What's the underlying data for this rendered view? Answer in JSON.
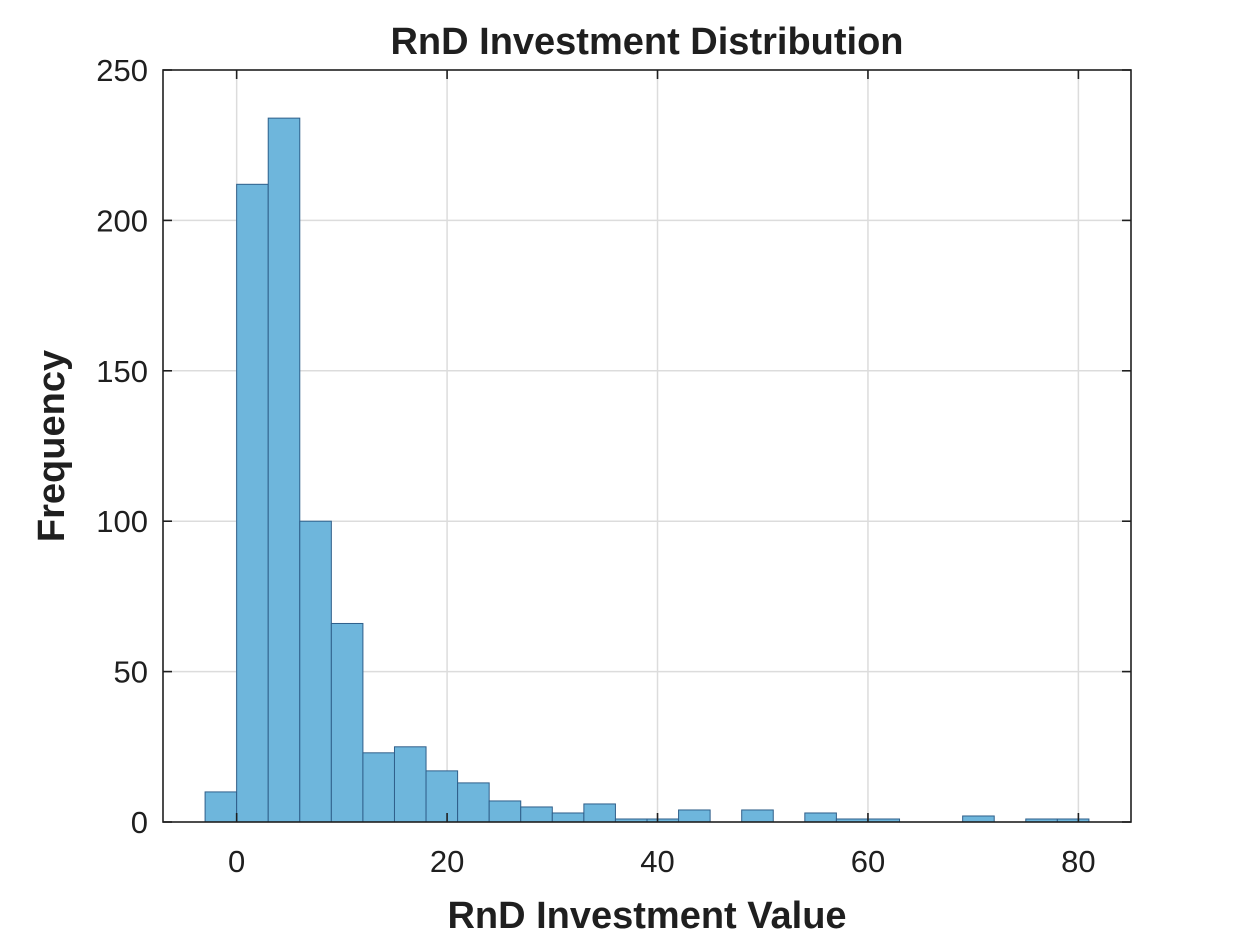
{
  "chart_data": {
    "type": "bar",
    "title": "RnD Investment Distribution",
    "xlabel": "RnD Investment Value",
    "ylabel": "Frequency",
    "xlim": [
      -7,
      85
    ],
    "ylim": [
      0,
      250
    ],
    "xticks": [
      0,
      20,
      40,
      60,
      80
    ],
    "yticks": [
      0,
      50,
      100,
      150,
      200,
      250
    ],
    "grid": true,
    "bar_color": "#6eb6dc",
    "bar_edge_color": "#2f5f8a",
    "bin_width": 3,
    "bins": [
      {
        "x0": -3,
        "count": 10
      },
      {
        "x0": 0,
        "count": 212
      },
      {
        "x0": 3,
        "count": 234
      },
      {
        "x0": 6,
        "count": 100
      },
      {
        "x0": 9,
        "count": 66
      },
      {
        "x0": 12,
        "count": 23
      },
      {
        "x0": 15,
        "count": 25
      },
      {
        "x0": 18,
        "count": 17
      },
      {
        "x0": 21,
        "count": 13
      },
      {
        "x0": 24,
        "count": 7
      },
      {
        "x0": 27,
        "count": 5
      },
      {
        "x0": 30,
        "count": 3
      },
      {
        "x0": 33,
        "count": 6
      },
      {
        "x0": 36,
        "count": 1
      },
      {
        "x0": 39,
        "count": 1
      },
      {
        "x0": 42,
        "count": 4
      },
      {
        "x0": 48,
        "count": 4
      },
      {
        "x0": 54,
        "count": 3
      },
      {
        "x0": 57,
        "count": 1
      },
      {
        "x0": 60,
        "count": 1
      },
      {
        "x0": 69,
        "count": 2
      },
      {
        "x0": 75,
        "count": 1
      },
      {
        "x0": 78,
        "count": 1
      }
    ]
  }
}
